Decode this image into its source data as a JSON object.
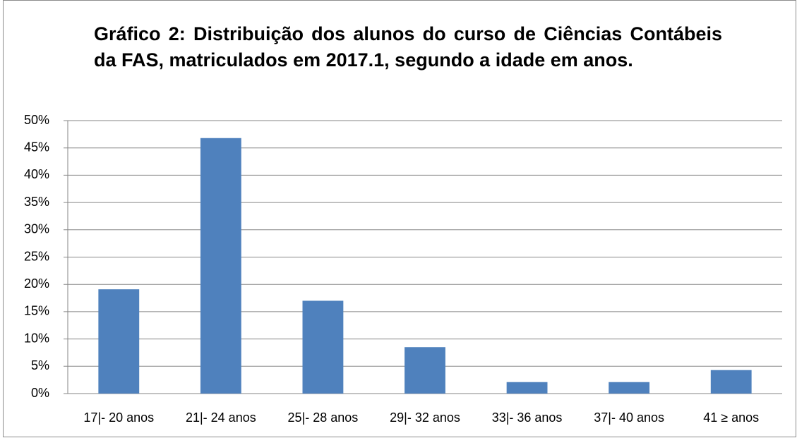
{
  "chart_data": {
    "type": "bar",
    "title": "Gráfico 2: Distribuição dos alunos do curso de Ciências Contábeis da FAS, matriculados em 2017.1, segundo a idade em anos.",
    "categories": [
      "17|- 20 anos",
      "21|- 24 anos",
      "25|- 28 anos",
      "29|- 32 anos",
      "33|- 36 anos",
      "37|- 40 anos",
      "41 ≥  anos"
    ],
    "values": [
      19.1,
      46.8,
      17.0,
      8.5,
      2.1,
      2.1,
      4.3
    ],
    "color": "#4f81bd",
    "ylim": [
      0,
      50
    ],
    "yticks": [
      {
        "value": 0,
        "label": "0%"
      },
      {
        "value": 5,
        "label": "5%"
      },
      {
        "value": 10,
        "label": "10%"
      },
      {
        "value": 15,
        "label": "15%"
      },
      {
        "value": 20,
        "label": "20%"
      },
      {
        "value": 25,
        "label": "25%"
      },
      {
        "value": 30,
        "label": "30%"
      },
      {
        "value": 35,
        "label": "35%"
      },
      {
        "value": 40,
        "label": "40%"
      },
      {
        "value": 45,
        "label": "45%"
      },
      {
        "value": 50,
        "label": "50%"
      }
    ],
    "grid": true
  }
}
